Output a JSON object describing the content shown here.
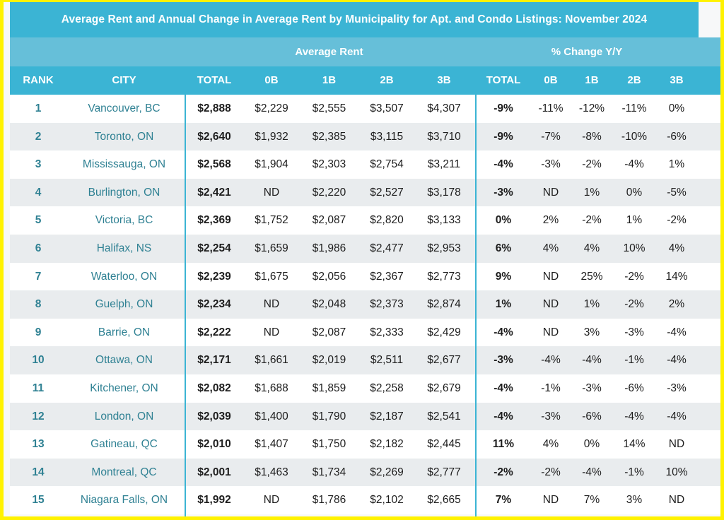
{
  "title": "Average Rent and Annual Change in Average Rent by Municipality for Apt. and Condo Listings: November 2024",
  "group_headers": {
    "average_rent": "Average Rent",
    "pct_change": "% Change Y/Y"
  },
  "columns": [
    "RANK",
    "CITY",
    "TOTAL",
    "0B",
    "1B",
    "2B",
    "3B",
    "TOTAL",
    "0B",
    "1B",
    "2B",
    "3B"
  ],
  "colors": {
    "header_blue": "#3bb4d4",
    "group_blue": "#66bfd9",
    "city_teal": "#2f8193",
    "frame_yellow": "#fff200",
    "row_alt": "#e9ecee"
  },
  "rows": [
    {
      "rank": "1",
      "city": "Vancouver, BC",
      "total": "$2,888",
      "b0": "$2,229",
      "b1": "$2,555",
      "b2": "$3,507",
      "b3": "$4,307",
      "ptotal": "-9%",
      "p0": "-11%",
      "p1": "-12%",
      "p2": "-11%",
      "p3": "0%"
    },
    {
      "rank": "2",
      "city": "Toronto, ON",
      "total": "$2,640",
      "b0": "$1,932",
      "b1": "$2,385",
      "b2": "$3,115",
      "b3": "$3,710",
      "ptotal": "-9%",
      "p0": "-7%",
      "p1": "-8%",
      "p2": "-10%",
      "p3": "-6%"
    },
    {
      "rank": "3",
      "city": "Mississauga, ON",
      "total": "$2,568",
      "b0": "$1,904",
      "b1": "$2,303",
      "b2": "$2,754",
      "b3": "$3,211",
      "ptotal": "-4%",
      "p0": "-3%",
      "p1": "-2%",
      "p2": "-4%",
      "p3": "1%"
    },
    {
      "rank": "4",
      "city": "Burlington, ON",
      "total": "$2,421",
      "b0": "ND",
      "b1": "$2,220",
      "b2": "$2,527",
      "b3": "$3,178",
      "ptotal": "-3%",
      "p0": "ND",
      "p1": "1%",
      "p2": "0%",
      "p3": "-5%"
    },
    {
      "rank": "5",
      "city": "Victoria, BC",
      "total": "$2,369",
      "b0": "$1,752",
      "b1": "$2,087",
      "b2": "$2,820",
      "b3": "$3,133",
      "ptotal": "0%",
      "p0": "2%",
      "p1": "-2%",
      "p2": "1%",
      "p3": "-2%"
    },
    {
      "rank": "6",
      "city": "Halifax, NS",
      "total": "$2,254",
      "b0": "$1,659",
      "b1": "$1,986",
      "b2": "$2,477",
      "b3": "$2,953",
      "ptotal": "6%",
      "p0": "4%",
      "p1": "4%",
      "p2": "10%",
      "p3": "4%"
    },
    {
      "rank": "7",
      "city": "Waterloo, ON",
      "total": "$2,239",
      "b0": "$1,675",
      "b1": "$2,056",
      "b2": "$2,367",
      "b3": "$2,773",
      "ptotal": "9%",
      "p0": "ND",
      "p1": "25%",
      "p2": "-2%",
      "p3": "14%"
    },
    {
      "rank": "8",
      "city": "Guelph, ON",
      "total": "$2,234",
      "b0": "ND",
      "b1": "$2,048",
      "b2": "$2,373",
      "b3": "$2,874",
      "ptotal": "1%",
      "p0": "ND",
      "p1": "1%",
      "p2": "-2%",
      "p3": "2%"
    },
    {
      "rank": "9",
      "city": "Barrie, ON",
      "total": "$2,222",
      "b0": "ND",
      "b1": "$2,087",
      "b2": "$2,333",
      "b3": "$2,429",
      "ptotal": "-4%",
      "p0": "ND",
      "p1": "3%",
      "p2": "-3%",
      "p3": "-4%"
    },
    {
      "rank": "10",
      "city": "Ottawa, ON",
      "total": "$2,171",
      "b0": "$1,661",
      "b1": "$2,019",
      "b2": "$2,511",
      "b3": "$2,677",
      "ptotal": "-3%",
      "p0": "-4%",
      "p1": "-4%",
      "p2": "-1%",
      "p3": "-4%"
    },
    {
      "rank": "11",
      "city": "Kitchener, ON",
      "total": "$2,082",
      "b0": "$1,688",
      "b1": "$1,859",
      "b2": "$2,258",
      "b3": "$2,679",
      "ptotal": "-4%",
      "p0": "-1%",
      "p1": "-3%",
      "p2": "-6%",
      "p3": "-3%"
    },
    {
      "rank": "12",
      "city": "London, ON",
      "total": "$2,039",
      "b0": "$1,400",
      "b1": "$1,790",
      "b2": "$2,187",
      "b3": "$2,541",
      "ptotal": "-4%",
      "p0": "-3%",
      "p1": "-6%",
      "p2": "-4%",
      "p3": "-4%"
    },
    {
      "rank": "13",
      "city": "Gatineau, QC",
      "total": "$2,010",
      "b0": "$1,407",
      "b1": "$1,750",
      "b2": "$2,182",
      "b3": "$2,445",
      "ptotal": "11%",
      "p0": "4%",
      "p1": "0%",
      "p2": "14%",
      "p3": "ND"
    },
    {
      "rank": "14",
      "city": "Montreal, QC",
      "total": "$2,001",
      "b0": "$1,463",
      "b1": "$1,734",
      "b2": "$2,269",
      "b3": "$2,777",
      "ptotal": "-2%",
      "p0": "-2%",
      "p1": "-4%",
      "p2": "-1%",
      "p3": "10%"
    },
    {
      "rank": "15",
      "city": "Niagara Falls, ON",
      "total": "$1,992",
      "b0": "ND",
      "b1": "$1,786",
      "b2": "$2,102",
      "b3": "$2,665",
      "ptotal": "7%",
      "p0": "ND",
      "p1": "7%",
      "p2": "3%",
      "p3": "ND"
    }
  ]
}
